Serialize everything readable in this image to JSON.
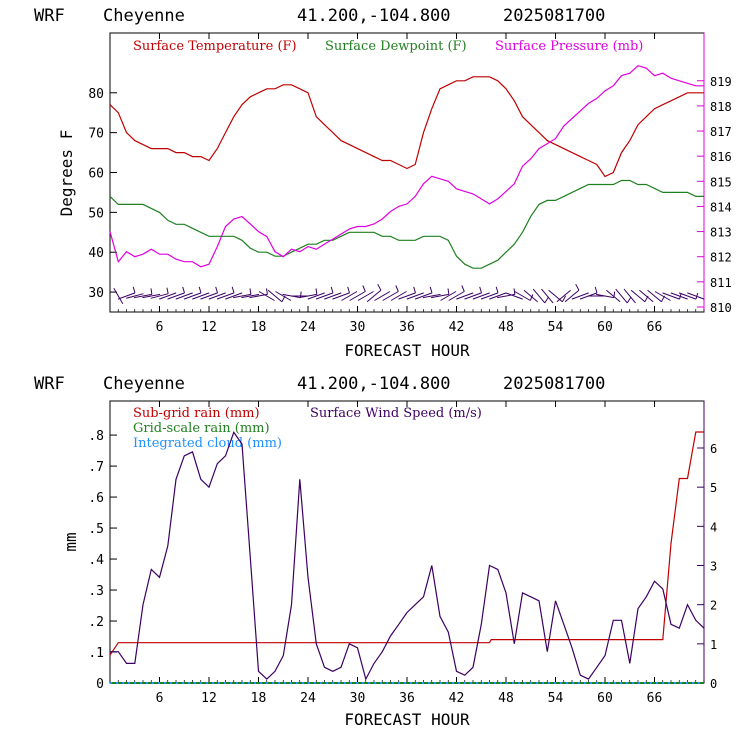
{
  "chart_data": [
    {
      "type": "line",
      "header": {
        "model": "WRF",
        "station": "Cheyenne",
        "coords": "41.200,-104.800",
        "init": "2025081700"
      },
      "xlabel": "FORECAST HOUR",
      "ylabel": "Degrees F",
      "xlim": [
        0,
        72
      ],
      "ylim": [
        25,
        95
      ],
      "y2lim": [
        809.8,
        820.9
      ],
      "x_ticks": [
        "6",
        "12",
        "18",
        "24",
        "30",
        "36",
        "42",
        "48",
        "54",
        "60",
        "66"
      ],
      "y_ticks": [
        "30",
        "40",
        "50",
        "60",
        "70",
        "80"
      ],
      "y2_ticks": [
        "810",
        "811",
        "812",
        "813",
        "814",
        "815",
        "816",
        "817",
        "818",
        "819"
      ],
      "legend": [
        "Surface Temperature (F)",
        "Surface Dewpoint (F)",
        "Surface Pressure (mb)"
      ],
      "series": [
        {
          "name": "Surface Temperature (F)",
          "color": "#c00000",
          "axis": "left",
          "x": [
            0,
            1,
            2,
            3,
            4,
            5,
            6,
            7,
            8,
            9,
            10,
            11,
            12,
            13,
            14,
            15,
            16,
            17,
            18,
            19,
            20,
            21,
            22,
            23,
            24,
            25,
            26,
            27,
            28,
            29,
            30,
            31,
            32,
            33,
            34,
            35,
            36,
            37,
            38,
            39,
            40,
            41,
            42,
            43,
            44,
            45,
            46,
            47,
            48,
            49,
            50,
            51,
            52,
            53,
            54,
            55,
            56,
            57,
            58,
            59,
            60,
            61,
            62,
            63,
            64,
            65,
            66,
            67,
            68,
            69,
            70,
            71,
            72
          ],
          "y": [
            77,
            75,
            70,
            68,
            67,
            66,
            66,
            66,
            65,
            65,
            64,
            64,
            63,
            66,
            70,
            74,
            77,
            79,
            80,
            81,
            81,
            82,
            82,
            81,
            80,
            74,
            72,
            70,
            68,
            67,
            66,
            65,
            64,
            63,
            63,
            62,
            61,
            62,
            70,
            76,
            81,
            82,
            83,
            83,
            84,
            84,
            84,
            83,
            81,
            78,
            74,
            72,
            70,
            68,
            67,
            66,
            65,
            64,
            63,
            62,
            59,
            60,
            65,
            68,
            72,
            74,
            76,
            77,
            78,
            79,
            80,
            80,
            80
          ]
        },
        {
          "name": "Surface Dewpoint (F)",
          "color": "#208020",
          "axis": "left",
          "x": [
            0,
            1,
            2,
            3,
            4,
            5,
            6,
            7,
            8,
            9,
            10,
            11,
            12,
            13,
            14,
            15,
            16,
            17,
            18,
            19,
            20,
            21,
            22,
            23,
            24,
            25,
            26,
            27,
            28,
            29,
            30,
            31,
            32,
            33,
            34,
            35,
            36,
            37,
            38,
            39,
            40,
            41,
            42,
            43,
            44,
            45,
            46,
            47,
            48,
            49,
            50,
            51,
            52,
            53,
            54,
            55,
            56,
            57,
            58,
            59,
            60,
            61,
            62,
            63,
            64,
            65,
            66,
            67,
            68,
            69,
            70,
            71,
            72
          ],
          "y": [
            54,
            52,
            52,
            52,
            52,
            51,
            50,
            48,
            47,
            47,
            46,
            45,
            44,
            44,
            44,
            44,
            43,
            41,
            40,
            40,
            39,
            39,
            40,
            41,
            42,
            42,
            43,
            43,
            44,
            45,
            45,
            45,
            45,
            44,
            44,
            43,
            43,
            43,
            44,
            44,
            44,
            43,
            39,
            37,
            36,
            36,
            37,
            38,
            40,
            42,
            45,
            49,
            52,
            53,
            53,
            54,
            55,
            56,
            57,
            57,
            57,
            57,
            58,
            58,
            57,
            57,
            56,
            55,
            55,
            55,
            55,
            54,
            54
          ]
        },
        {
          "name": "Surface Pressure (mb)",
          "color": "#e000e0",
          "axis": "right",
          "x": [
            0,
            1,
            2,
            3,
            4,
            5,
            6,
            7,
            8,
            9,
            10,
            11,
            12,
            13,
            14,
            15,
            16,
            17,
            18,
            19,
            20,
            21,
            22,
            23,
            24,
            25,
            26,
            27,
            28,
            29,
            30,
            31,
            32,
            33,
            34,
            35,
            36,
            37,
            38,
            39,
            40,
            41,
            42,
            43,
            44,
            45,
            46,
            47,
            48,
            49,
            50,
            51,
            52,
            53,
            54,
            55,
            56,
            57,
            58,
            59,
            60,
            61,
            62,
            63,
            64,
            65,
            66,
            67,
            68,
            69,
            70,
            71,
            72
          ],
          "y": [
            813.0,
            811.8,
            812.2,
            812.0,
            812.1,
            812.3,
            812.1,
            812.1,
            811.9,
            811.8,
            811.8,
            811.6,
            811.7,
            812.4,
            813.2,
            813.5,
            813.6,
            813.3,
            813.0,
            812.8,
            812.2,
            812.0,
            812.3,
            812.2,
            812.4,
            812.3,
            812.5,
            812.7,
            812.9,
            813.1,
            813.2,
            813.2,
            813.3,
            813.5,
            813.8,
            814.0,
            814.1,
            814.4,
            814.9,
            815.2,
            815.1,
            815.0,
            814.7,
            814.6,
            814.5,
            814.3,
            814.1,
            814.3,
            814.6,
            814.9,
            815.6,
            815.9,
            816.3,
            816.5,
            816.7,
            817.2,
            817.5,
            817.8,
            818.1,
            818.3,
            818.6,
            818.8,
            819.2,
            819.3,
            819.6,
            819.5,
            819.2,
            819.3,
            819.1,
            819.0,
            818.9,
            818.8,
            818.8
          ]
        }
      ]
    },
    {
      "type": "line",
      "header": {
        "model": "WRF",
        "station": "Cheyenne",
        "coords": "41.200,-104.800",
        "init": "2025081700"
      },
      "xlabel": "FORECAST HOUR",
      "ylabel": "mm",
      "xlim": [
        0,
        72
      ],
      "ylim": [
        0,
        0.91
      ],
      "y2lim": [
        0,
        7.2
      ],
      "x_ticks": [
        "6",
        "12",
        "18",
        "24",
        "30",
        "36",
        "42",
        "48",
        "54",
        "60",
        "66"
      ],
      "y_ticks": [
        "0",
        ".1",
        ".2",
        ".3",
        ".4",
        ".5",
        ".6",
        ".7",
        ".8"
      ],
      "y2_ticks": [
        "0",
        "1",
        "2",
        "3",
        "4",
        "5",
        "6"
      ],
      "legend": [
        "Sub-grid rain (mm)",
        "Grid-scale rain (mm)",
        "Integrated cloud (mm)",
        "Surface Wind Speed (m/s)"
      ],
      "series": [
        {
          "name": "Sub-grid rain (mm)",
          "color": "#c00000",
          "axis": "left",
          "x": [
            0,
            1,
            46,
            46.2,
            67,
            68,
            69,
            70,
            71,
            72
          ],
          "y": [
            0.09,
            0.13,
            0.13,
            0.14,
            0.14,
            0.45,
            0.66,
            0.66,
            0.81,
            0.81
          ]
        },
        {
          "name": "Grid-scale rain (mm)",
          "color": "#208020",
          "axis": "left",
          "x": [
            0,
            72
          ],
          "y": [
            0,
            0
          ]
        },
        {
          "name": "Integrated cloud (mm)",
          "color": "#1e90ff",
          "axis": "left",
          "x": [
            0,
            72
          ],
          "y": [
            0,
            0
          ]
        },
        {
          "name": "Surface Wind Speed (m/s)",
          "color": "#3c0064",
          "axis": "right",
          "x": [
            0,
            1,
            2,
            3,
            4,
            5,
            6,
            7,
            8,
            9,
            10,
            11,
            12,
            13,
            14,
            15,
            16,
            17,
            18,
            19,
            20,
            21,
            22,
            23,
            24,
            25,
            26,
            27,
            28,
            29,
            30,
            31,
            32,
            33,
            34,
            35,
            36,
            37,
            38,
            39,
            40,
            41,
            42,
            43,
            44,
            45,
            46,
            47,
            48,
            49,
            50,
            51,
            52,
            53,
            54,
            55,
            56,
            57,
            58,
            59,
            60,
            61,
            62,
            63,
            64,
            65,
            66,
            67,
            68,
            69,
            70,
            71,
            72
          ],
          "y": [
            0.8,
            0.8,
            0.5,
            0.5,
            2.0,
            2.9,
            2.7,
            3.5,
            5.2,
            5.8,
            5.9,
            5.2,
            5.0,
            5.6,
            5.8,
            6.4,
            6.1,
            3.2,
            0.3,
            0.1,
            0.3,
            0.7,
            2.0,
            5.2,
            2.7,
            1.0,
            0.4,
            0.3,
            0.4,
            1.0,
            0.9,
            0.1,
            0.5,
            0.8,
            1.2,
            1.5,
            1.8,
            2.0,
            2.2,
            3.0,
            1.7,
            1.3,
            0.3,
            0.2,
            0.4,
            1.5,
            3.0,
            2.9,
            2.3,
            1.0,
            2.3,
            2.2,
            2.1,
            0.8,
            2.1,
            1.5,
            0.9,
            0.2,
            0.1,
            0.4,
            0.7,
            1.6,
            1.6,
            0.5,
            1.9,
            2.2,
            2.6,
            2.4,
            1.5,
            1.4,
            2.0,
            1.6,
            1.4
          ]
        }
      ]
    }
  ]
}
